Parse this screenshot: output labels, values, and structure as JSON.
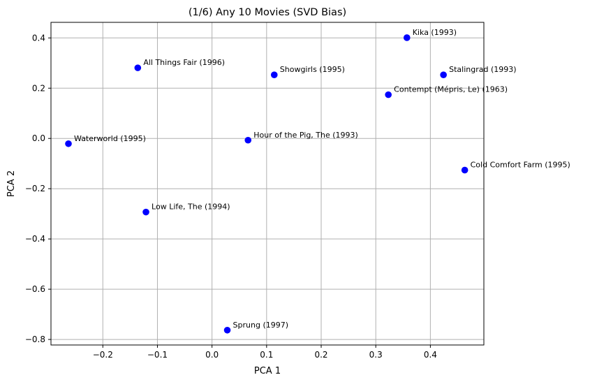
{
  "chart_data": {
    "type": "scatter",
    "title": "(1/6) Any 10 Movies (SVD Bias)",
    "xlabel": "PCA 1",
    "ylabel": "PCA 2",
    "xlim": [
      -0.295,
      0.498
    ],
    "ylim": [
      -0.822,
      0.462
    ],
    "xticks": [
      -0.2,
      -0.1,
      0.0,
      0.1,
      0.2,
      0.3,
      0.4
    ],
    "xtick_labels": [
      "−0.2",
      "−0.1",
      "0.0",
      "0.1",
      "0.2",
      "0.3",
      "0.4"
    ],
    "yticks": [
      -0.8,
      -0.6,
      -0.4,
      -0.2,
      0.0,
      0.2,
      0.4
    ],
    "ytick_labels": [
      "−0.8",
      "−0.6",
      "−0.4",
      "−0.2",
      "0.0",
      "0.2",
      "0.4"
    ],
    "grid": true,
    "marker_color": "#0000ff",
    "points": [
      {
        "label": "Kika (1993)",
        "x": 0.357,
        "y": 0.401
      },
      {
        "label": "All Things Fair (1996)",
        "x": -0.136,
        "y": 0.281
      },
      {
        "label": "Showgirls (1995)",
        "x": 0.114,
        "y": 0.253
      },
      {
        "label": "Stalingrad (1993)",
        "x": 0.424,
        "y": 0.253
      },
      {
        "label": "Contempt (Mépris, Le) (1963)",
        "x": 0.323,
        "y": 0.174
      },
      {
        "label": "Waterworld (1995)",
        "x": -0.263,
        "y": -0.021
      },
      {
        "label": "Hour of the Pig, The (1993)",
        "x": 0.066,
        "y": -0.007
      },
      {
        "label": "Cold Comfort Farm (1995)",
        "x": 0.463,
        "y": -0.126
      },
      {
        "label": "Low Life, The (1994)",
        "x": -0.121,
        "y": -0.293
      },
      {
        "label": "Sprung (1997)",
        "x": 0.028,
        "y": -0.763
      }
    ]
  }
}
